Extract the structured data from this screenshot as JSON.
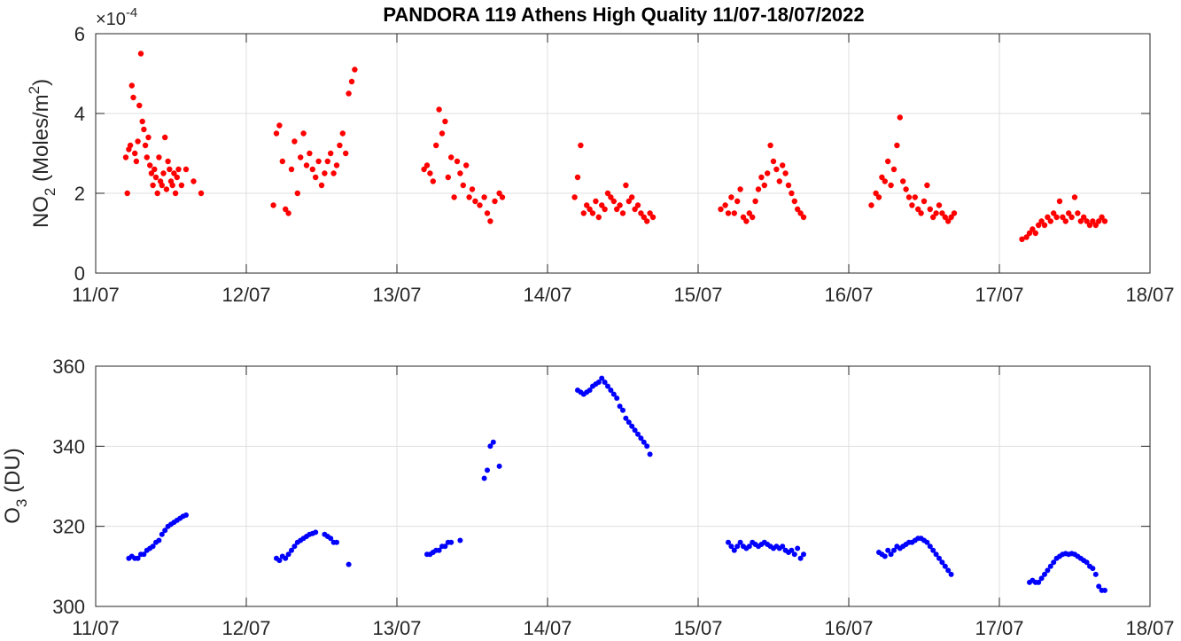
{
  "chart_data": [
    {
      "type": "scatter",
      "title": "PANDORA 119 Athens High Quality 11/07-18/07/2022",
      "ylabel": {
        "base": "NO",
        "sub": "2",
        "unit_pre": " (Moles/m",
        "unit_sup": "2",
        "unit_post": ")"
      },
      "y_exponent": {
        "prefix": "×10",
        "power": "-4"
      },
      "x_tick_labels": [
        "11/07",
        "12/07",
        "13/07",
        "14/07",
        "15/07",
        "16/07",
        "17/07",
        "18/07"
      ],
      "xlim_days": [
        0,
        7
      ],
      "ylim": [
        0,
        6
      ],
      "y_ticks": [
        0,
        2,
        4,
        6
      ],
      "grid": true,
      "color": "#ff0000",
      "series": [
        {
          "x": [
            0.2,
            0.21,
            0.22,
            0.23,
            0.24,
            0.25,
            0.26,
            0.27,
            0.28,
            0.29,
            0.3,
            0.31,
            0.32,
            0.33,
            0.34,
            0.35,
            0.36,
            0.37,
            0.38,
            0.39,
            0.4,
            0.41,
            0.42,
            0.43,
            0.44,
            0.45,
            0.46,
            0.47,
            0.48,
            0.49,
            0.5,
            0.51,
            0.52,
            0.53,
            0.54,
            0.55,
            0.57,
            0.6,
            0.65,
            0.7,
            1.18,
            1.2,
            1.22,
            1.24,
            1.26,
            1.28,
            1.3,
            1.32,
            1.34,
            1.36,
            1.38,
            1.4,
            1.42,
            1.44,
            1.46,
            1.48,
            1.5,
            1.52,
            1.54,
            1.56,
            1.58,
            1.6,
            1.62,
            1.64,
            1.66,
            1.68,
            1.7,
            1.72,
            2.18,
            2.2,
            2.22,
            2.24,
            2.26,
            2.28,
            2.3,
            2.32,
            2.34,
            2.36,
            2.38,
            2.4,
            2.42,
            2.44,
            2.46,
            2.48,
            2.5,
            2.52,
            2.55,
            2.58,
            2.6,
            2.62,
            2.65,
            2.68,
            2.7,
            3.18,
            3.2,
            3.22,
            3.24,
            3.26,
            3.28,
            3.3,
            3.32,
            3.34,
            3.36,
            3.38,
            3.4,
            3.42,
            3.44,
            3.46,
            3.48,
            3.5,
            3.52,
            3.54,
            3.56,
            3.58,
            3.6,
            3.62,
            3.64,
            3.66,
            3.68,
            3.7,
            4.15,
            4.18,
            4.2,
            4.22,
            4.24,
            4.26,
            4.28,
            4.3,
            4.32,
            4.34,
            4.36,
            4.38,
            4.4,
            4.42,
            4.44,
            4.46,
            4.48,
            4.5,
            4.52,
            4.54,
            4.56,
            4.58,
            4.6,
            4.62,
            4.64,
            4.66,
            4.68,
            4.7,
            5.15,
            5.18,
            5.2,
            5.22,
            5.24,
            5.26,
            5.28,
            5.3,
            5.32,
            5.34,
            5.36,
            5.38,
            5.4,
            5.42,
            5.44,
            5.46,
            5.48,
            5.5,
            5.52,
            5.54,
            5.56,
            5.58,
            5.6,
            5.62,
            5.64,
            5.66,
            5.68,
            5.7,
            6.15,
            6.18,
            6.2,
            6.22,
            6.24,
            6.26,
            6.28,
            6.3,
            6.32,
            6.34,
            6.36,
            6.38,
            6.4,
            6.42,
            6.44,
            6.46,
            6.48,
            6.5,
            6.52,
            6.54,
            6.56,
            6.58,
            6.6,
            6.62,
            6.64,
            6.66,
            6.68,
            6.7
          ],
          "y": [
            2.9,
            2.0,
            3.1,
            3.2,
            4.7,
            4.4,
            3.0,
            2.8,
            3.3,
            4.2,
            5.5,
            3.8,
            3.6,
            3.2,
            2.9,
            3.4,
            2.7,
            2.5,
            2.2,
            2.6,
            2.4,
            2.0,
            2.9,
            2.3,
            2.2,
            2.5,
            3.4,
            2.1,
            2.8,
            2.6,
            2.3,
            2.2,
            2.5,
            2.0,
            2.4,
            2.6,
            2.2,
            2.6,
            2.3,
            2.0,
            1.7,
            3.5,
            3.7,
            2.8,
            1.6,
            1.5,
            2.6,
            3.3,
            2.0,
            2.9,
            3.5,
            2.7,
            3.0,
            2.6,
            2.4,
            2.8,
            2.2,
            2.5,
            2.8,
            3.0,
            2.5,
            2.7,
            3.2,
            3.5,
            3.0,
            4.5,
            4.8,
            5.1,
            2.6,
            2.7,
            2.5,
            2.3,
            3.2,
            4.1,
            3.5,
            3.8,
            2.4,
            2.9,
            1.9,
            2.8,
            2.5,
            2.2,
            2.7,
            1.9,
            2.1,
            1.8,
            1.7,
            1.9,
            1.5,
            1.3,
            1.8,
            2.0,
            1.9,
            1.9,
            2.4,
            3.2,
            1.5,
            1.7,
            1.6,
            1.5,
            1.8,
            1.4,
            1.7,
            1.6,
            2.0,
            1.9,
            1.8,
            1.6,
            1.7,
            1.5,
            2.2,
            1.8,
            1.9,
            1.6,
            1.7,
            1.5,
            1.4,
            1.3,
            1.5,
            1.4,
            1.6,
            1.7,
            1.5,
            1.9,
            1.5,
            1.8,
            2.1,
            1.4,
            1.3,
            1.5,
            1.4,
            1.8,
            2.1,
            2.4,
            2.2,
            2.5,
            3.2,
            2.8,
            2.6,
            2.3,
            2.7,
            2.5,
            2.2,
            2.0,
            1.8,
            1.6,
            1.5,
            1.4,
            1.7,
            2.0,
            1.9,
            2.4,
            2.3,
            2.8,
            2.2,
            2.6,
            3.2,
            3.9,
            2.3,
            2.1,
            1.9,
            1.7,
            1.9,
            1.6,
            1.5,
            1.8,
            2.2,
            1.6,
            1.4,
            1.5,
            1.7,
            1.5,
            1.4,
            1.3,
            1.4,
            1.5,
            0.85,
            0.9,
            1.0,
            1.1,
            1.0,
            1.2,
            1.3,
            1.2,
            1.4,
            1.3,
            1.5,
            1.4,
            1.8,
            1.4,
            1.3,
            1.5,
            1.4,
            1.9,
            1.5,
            1.3,
            1.4,
            1.3,
            1.2,
            1.3,
            1.2,
            1.3,
            1.4,
            1.3
          ]
        }
      ]
    },
    {
      "type": "scatter",
      "ylabel": {
        "base": "O",
        "sub": "3",
        "unit_pre": " (DU)",
        "unit_sup": "",
        "unit_post": ""
      },
      "x_tick_labels": [
        "11/07",
        "12/07",
        "13/07",
        "14/07",
        "15/07",
        "16/07",
        "17/07",
        "18/07"
      ],
      "xlim_days": [
        0,
        7
      ],
      "ylim": [
        300,
        360
      ],
      "y_ticks": [
        300,
        320,
        340,
        360
      ],
      "grid": true,
      "color": "#0000ff",
      "series": [
        {
          "x": [
            0.22,
            0.24,
            0.26,
            0.28,
            0.3,
            0.32,
            0.34,
            0.36,
            0.38,
            0.4,
            0.42,
            0.44,
            0.46,
            0.48,
            0.5,
            0.52,
            0.54,
            0.56,
            0.58,
            0.6,
            1.2,
            1.22,
            1.24,
            1.26,
            1.28,
            1.3,
            1.32,
            1.34,
            1.36,
            1.38,
            1.4,
            1.42,
            1.44,
            1.46,
            1.52,
            1.54,
            1.56,
            1.58,
            1.6,
            1.68,
            2.2,
            2.22,
            2.24,
            2.26,
            2.28,
            2.3,
            2.32,
            2.34,
            2.36,
            2.42,
            2.58,
            2.6,
            2.62,
            2.64,
            2.68,
            3.2,
            3.22,
            3.24,
            3.26,
            3.28,
            3.3,
            3.32,
            3.34,
            3.36,
            3.38,
            3.4,
            3.42,
            3.44,
            3.46,
            3.48,
            3.5,
            3.52,
            3.54,
            3.56,
            3.58,
            3.6,
            3.62,
            3.64,
            3.66,
            3.68,
            4.2,
            4.22,
            4.24,
            4.26,
            4.28,
            4.3,
            4.32,
            4.34,
            4.36,
            4.38,
            4.4,
            4.42,
            4.44,
            4.46,
            4.48,
            4.5,
            4.52,
            4.54,
            4.56,
            4.58,
            4.6,
            4.62,
            4.64,
            4.66,
            4.68,
            4.7,
            5.2,
            5.22,
            5.24,
            5.26,
            5.28,
            5.3,
            5.32,
            5.34,
            5.36,
            5.38,
            5.4,
            5.42,
            5.44,
            5.46,
            5.48,
            5.5,
            5.52,
            5.54,
            5.56,
            5.58,
            5.6,
            5.62,
            5.64,
            5.66,
            5.68,
            6.2,
            6.22,
            6.24,
            6.26,
            6.28,
            6.3,
            6.32,
            6.34,
            6.36,
            6.38,
            6.4,
            6.42,
            6.44,
            6.46,
            6.48,
            6.5,
            6.52,
            6.54,
            6.56,
            6.58,
            6.6,
            6.62,
            6.64,
            6.66,
            6.68,
            6.7
          ],
          "y": [
            312,
            312.5,
            312,
            312,
            313,
            313,
            314,
            314.5,
            315,
            316,
            316.5,
            318,
            319,
            320,
            320.5,
            321,
            321.5,
            322,
            322.5,
            322.8,
            312,
            311.5,
            312.5,
            312,
            313,
            314,
            315,
            316,
            316.5,
            317,
            317.5,
            318,
            318.2,
            318.5,
            318,
            317.5,
            317,
            316,
            316,
            310.5,
            313,
            313,
            313.5,
            314,
            314,
            315,
            315,
            316,
            316,
            316.5,
            332,
            334,
            340,
            341,
            335,
            354,
            353.5,
            353,
            353.5,
            354,
            355,
            355.5,
            356,
            357,
            356,
            355,
            354,
            353,
            352,
            350,
            349,
            347,
            346,
            345,
            344,
            343,
            342,
            341,
            340,
            338,
            316,
            315,
            314,
            315,
            316,
            315,
            314.5,
            315,
            316,
            315.5,
            315,
            315.5,
            316,
            315.5,
            315,
            314.5,
            315,
            314.5,
            315,
            314,
            313.5,
            314,
            313,
            314.5,
            312,
            313,
            313.5,
            313,
            312.5,
            314,
            313,
            314,
            315,
            314.5,
            315,
            315.5,
            316,
            316,
            316.5,
            317,
            317,
            316.5,
            316,
            315,
            314,
            313,
            312,
            311,
            310,
            309,
            308,
            306,
            306.5,
            306,
            306,
            307,
            308,
            309,
            310,
            311,
            312,
            312.5,
            313,
            313.2,
            313,
            313.2,
            313,
            312.5,
            312,
            311.5,
            311,
            310,
            309.5,
            308,
            305,
            304,
            304
          ]
        }
      ]
    }
  ]
}
